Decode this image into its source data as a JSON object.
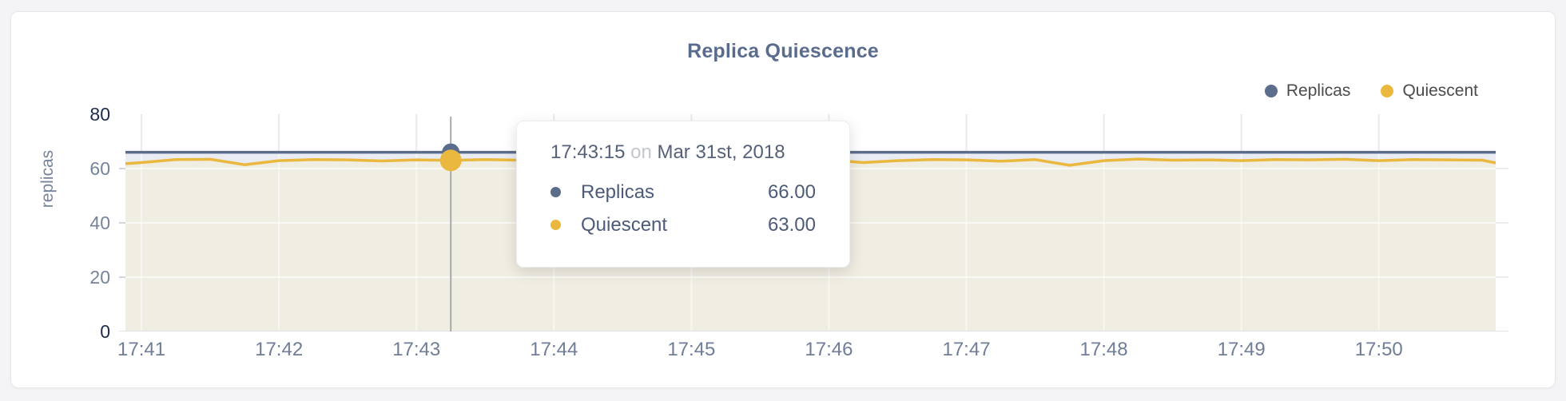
{
  "chart": {
    "title": "Replica Quiescence",
    "ylabel": "replicas"
  },
  "legend": {
    "items": [
      {
        "label": "Replicas",
        "color": "#5c6c8c"
      },
      {
        "label": "Quiescent",
        "color": "#eab83e"
      }
    ]
  },
  "tooltip": {
    "time": "17:43:15",
    "connector": "on",
    "date": "Mar 31st, 2018",
    "rows": [
      {
        "label": "Replicas",
        "value": "66.00",
        "color": "#5c6c8c"
      },
      {
        "label": "Quiescent",
        "value": "63.00",
        "color": "#eab83e"
      }
    ]
  },
  "chart_data": {
    "type": "area",
    "title": "Replica Quiescence",
    "xlabel": "",
    "ylabel": "replicas",
    "ylim": [
      0,
      80
    ],
    "yticks": [
      0,
      20,
      40,
      60,
      80
    ],
    "x_ticks": [
      "17:41",
      "17:42",
      "17:43",
      "17:44",
      "17:45",
      "17:46",
      "17:47",
      "17:48",
      "17:49",
      "17:50"
    ],
    "x_range": [
      "17:40:53",
      "17:50:51"
    ],
    "date": "Mar 31st, 2018",
    "grid": true,
    "legend_position": "top-right",
    "highlight": {
      "time": "17:43:15",
      "replicas": 66.0,
      "quiescent": 63.0
    },
    "crosshair_color": "#a9a9ad",
    "times": [
      "17:40:53",
      "17:41:00",
      "17:41:15",
      "17:41:30",
      "17:41:45",
      "17:42:00",
      "17:42:15",
      "17:42:30",
      "17:42:45",
      "17:43:00",
      "17:43:15",
      "17:43:30",
      "17:43:45",
      "17:44:00",
      "17:44:15",
      "17:44:30",
      "17:44:45",
      "17:45:00",
      "17:45:15",
      "17:45:30",
      "17:45:45",
      "17:46:00",
      "17:46:15",
      "17:46:30",
      "17:46:45",
      "17:47:00",
      "17:47:15",
      "17:47:30",
      "17:47:45",
      "17:48:00",
      "17:48:15",
      "17:48:30",
      "17:48:45",
      "17:49:00",
      "17:49:15",
      "17:49:30",
      "17:49:45",
      "17:50:00",
      "17:50:15",
      "17:50:30",
      "17:50:45",
      "17:50:51"
    ],
    "series": [
      {
        "name": "Replicas",
        "color": "#5c6c8c",
        "fill": "#e9ecf3",
        "values": [
          66,
          66,
          66,
          66,
          66,
          66,
          66,
          66,
          66,
          66,
          66,
          66,
          66,
          66,
          66,
          66,
          66,
          66,
          66,
          66,
          66,
          66,
          66,
          66,
          66,
          66,
          66,
          66,
          66,
          66,
          66,
          66,
          66,
          66,
          66,
          66,
          66,
          66,
          66,
          66,
          66,
          66
        ]
      },
      {
        "name": "Quiescent",
        "color": "#eab83e",
        "fill": "#f0ede2",
        "values": [
          61.8,
          62.2,
          63.3,
          63.4,
          61.4,
          62.9,
          63.3,
          63.2,
          62.8,
          63.2,
          63.0,
          63.3,
          63.1,
          62.6,
          63.2,
          63.3,
          63.1,
          63.2,
          63.0,
          63.2,
          63.1,
          63.2,
          62.2,
          62.9,
          63.3,
          63.2,
          62.7,
          63.3,
          61.2,
          62.9,
          63.5,
          63.1,
          63.2,
          62.9,
          63.3,
          63.2,
          63.4,
          62.9,
          63.3,
          63.2,
          63.1,
          62.1
        ]
      }
    ]
  }
}
